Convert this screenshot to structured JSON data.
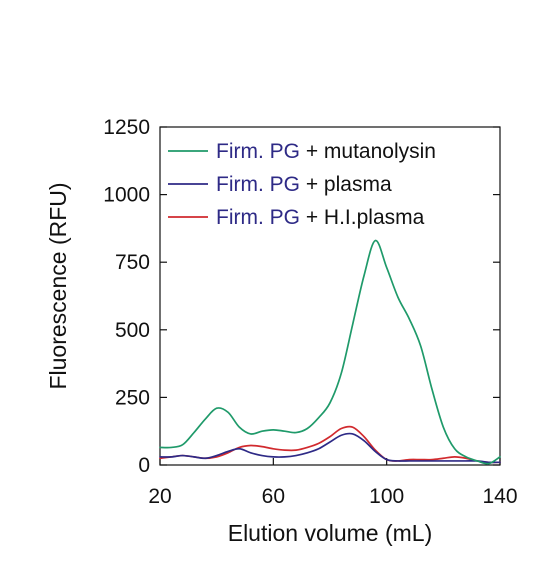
{
  "chart_data": {
    "type": "line",
    "title": "",
    "xlabel": "Elution volume (mL)",
    "ylabel": "Fluorescence (RFU)",
    "xlim": [
      20,
      140
    ],
    "ylim": [
      0,
      1250
    ],
    "xticks": [
      20,
      60,
      100,
      140
    ],
    "yticks": [
      0,
      250,
      500,
      750,
      1000,
      1250
    ],
    "grid": false,
    "legend_position": "top-right",
    "series": [
      {
        "name": "Firm. PG + mutanolysin",
        "name_parts": [
          "Firm. PG",
          "+ mutanolysin"
        ],
        "color": "#1f9a6a",
        "x": [
          20,
          24,
          28,
          32,
          36,
          40,
          44,
          48,
          52,
          56,
          60,
          64,
          68,
          72,
          76,
          80,
          84,
          88,
          92,
          96,
          100,
          104,
          108,
          112,
          116,
          120,
          124,
          128,
          132,
          136,
          140
        ],
        "y": [
          65,
          65,
          75,
          120,
          170,
          210,
          195,
          140,
          115,
          125,
          130,
          125,
          120,
          135,
          175,
          230,
          340,
          520,
          700,
          830,
          730,
          620,
          540,
          440,
          280,
          140,
          60,
          30,
          15,
          5,
          30
        ]
      },
      {
        "name": "Firm. PG + plasma",
        "name_parts": [
          "Firm. PG",
          "+ plasma"
        ],
        "color": "#2e2a86",
        "x": [
          20,
          24,
          28,
          32,
          36,
          40,
          44,
          48,
          52,
          56,
          60,
          64,
          68,
          72,
          76,
          80,
          84,
          88,
          92,
          96,
          100,
          104,
          108,
          112,
          116,
          120,
          124,
          128,
          132,
          136,
          140
        ],
        "y": [
          30,
          30,
          35,
          30,
          25,
          35,
          50,
          60,
          45,
          35,
          30,
          30,
          35,
          45,
          60,
          85,
          110,
          115,
          90,
          50,
          20,
          15,
          15,
          15,
          15,
          15,
          15,
          15,
          15,
          10,
          10
        ]
      },
      {
        "name": "Firm. PG + H.I.plasma",
        "name_parts": [
          "Firm. PG",
          "+ H.I.plasma"
        ],
        "color": "#d12a2e",
        "x": [
          20,
          24,
          28,
          32,
          36,
          40,
          44,
          48,
          52,
          56,
          60,
          64,
          68,
          72,
          76,
          80,
          84,
          88,
          92,
          96,
          100,
          104,
          108,
          112,
          116,
          120,
          124,
          128,
          132,
          136,
          140
        ],
        "y": [
          25,
          30,
          35,
          30,
          25,
          30,
          45,
          65,
          72,
          68,
          60,
          55,
          55,
          65,
          80,
          105,
          135,
          140,
          105,
          55,
          20,
          15,
          20,
          20,
          20,
          25,
          30,
          25,
          15,
          10,
          10
        ]
      }
    ]
  }
}
